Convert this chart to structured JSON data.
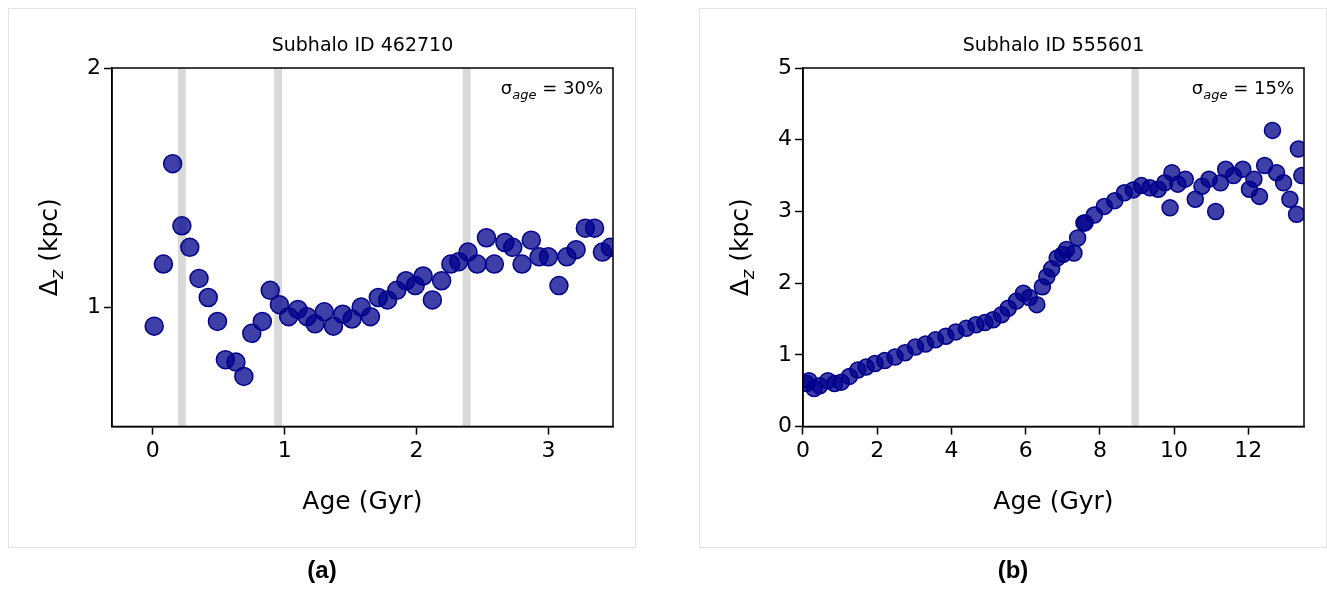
{
  "chart_data": [
    {
      "type": "scatter",
      "title": "Subhalo ID 462710",
      "xlabel": "Age (Gyr)",
      "ylabel": "Δ$_{z}$ (kpc)",
      "color": "#00008b",
      "marker": "circle",
      "grid": false,
      "legend": false,
      "x": [
        0.01,
        0.08,
        0.15,
        0.22,
        0.28,
        0.35,
        0.42,
        0.49,
        0.55,
        0.63,
        0.69,
        0.75,
        0.83,
        0.89,
        0.96,
        1.03,
        1.1,
        1.17,
        1.23,
        1.3,
        1.37,
        1.44,
        1.51,
        1.58,
        1.65,
        1.71,
        1.78,
        1.85,
        1.92,
        1.99,
        2.05,
        2.12,
        2.19,
        2.26,
        2.32,
        2.39,
        2.46,
        2.53,
        2.59,
        2.67,
        2.73,
        2.8,
        2.87,
        2.93,
        3.0,
        3.08,
        3.14,
        3.21,
        3.28,
        3.35,
        3.41,
        3.47
      ],
      "values": [
        0.92,
        1.18,
        1.6,
        1.34,
        1.25,
        1.12,
        1.04,
        0.94,
        0.78,
        0.77,
        0.71,
        0.89,
        0.94,
        1.07,
        1.01,
        0.96,
        0.99,
        0.96,
        0.93,
        0.98,
        0.92,
        0.97,
        0.95,
        1.0,
        0.96,
        1.04,
        1.03,
        1.07,
        1.11,
        1.09,
        1.13,
        1.03,
        1.11,
        1.18,
        1.19,
        1.23,
        1.18,
        1.29,
        1.18,
        1.27,
        1.25,
        1.18,
        1.28,
        1.21,
        1.21,
        1.09,
        1.21,
        1.24,
        1.33,
        1.33,
        1.23,
        1.25
      ],
      "xlim": [
        -0.31,
        3.49
      ],
      "ylim": [
        0.5,
        2
      ],
      "xticks": [
        0,
        1,
        2,
        3
      ],
      "yticks": [
        1,
        2
      ],
      "bands": [
        {
          "axis": "x",
          "from": 0.19,
          "to": 0.25,
          "color": "#d9d9d9"
        },
        {
          "axis": "x",
          "from": 0.92,
          "to": 0.98,
          "color": "#d9d9d9"
        },
        {
          "axis": "x",
          "from": 2.35,
          "to": 2.41,
          "color": "#d9d9d9"
        }
      ],
      "annotations": [
        "σ$_{age}$ = 30%",
        "(a)"
      ]
    },
    {
      "type": "scatter",
      "title": "Subhalo ID 555601",
      "xlabel": "Age (Gyr)",
      "ylabel": "Δ$_{z}$ (kpc)",
      "color": "#00008b",
      "marker": "circle",
      "grid": false,
      "legend": false,
      "x": [
        0.1,
        0.16,
        0.3,
        0.45,
        0.67,
        0.85,
        1.03,
        1.25,
        1.48,
        1.7,
        1.94,
        2.2,
        2.48,
        2.75,
        3.03,
        3.3,
        3.57,
        3.85,
        4.12,
        4.4,
        4.66,
        4.9,
        5.12,
        5.35,
        5.53,
        5.75,
        5.94,
        6.1,
        6.3,
        6.45,
        6.57,
        6.7,
        6.85,
        7.0,
        7.1,
        7.3,
        7.4,
        7.57,
        7.6,
        7.85,
        8.12,
        8.4,
        8.66,
        8.9,
        9.12,
        9.35,
        9.57,
        9.75,
        9.89,
        9.94,
        10.1,
        10.3,
        10.57,
        10.75,
        10.94,
        11.12,
        11.25,
        11.39,
        11.6,
        11.85,
        12.03,
        12.15,
        12.3,
        12.44,
        12.65,
        12.76,
        12.95,
        13.12,
        13.3,
        13.35,
        13.44
      ],
      "values": [
        0.6,
        0.64,
        0.53,
        0.57,
        0.64,
        0.6,
        0.62,
        0.7,
        0.79,
        0.83,
        0.88,
        0.92,
        0.97,
        1.03,
        1.11,
        1.15,
        1.21,
        1.26,
        1.32,
        1.37,
        1.42,
        1.45,
        1.49,
        1.56,
        1.65,
        1.75,
        1.86,
        1.8,
        1.7,
        1.95,
        2.09,
        2.2,
        2.35,
        2.4,
        2.47,
        2.42,
        2.63,
        2.84,
        2.84,
        2.95,
        3.07,
        3.15,
        3.26,
        3.3,
        3.36,
        3.33,
        3.31,
        3.4,
        3.05,
        3.54,
        3.38,
        3.45,
        3.17,
        3.35,
        3.45,
        3.0,
        3.4,
        3.59,
        3.5,
        3.59,
        3.31,
        3.45,
        3.21,
        3.64,
        4.13,
        3.54,
        3.4,
        3.17,
        2.96,
        3.87,
        3.5
      ],
      "xlim": [
        0,
        13.5
      ],
      "ylim": [
        0,
        5
      ],
      "xticks": [
        0,
        2,
        4,
        6,
        8,
        10,
        12
      ],
      "yticks": [
        0,
        1,
        2,
        3,
        4,
        5
      ],
      "bands": [
        {
          "axis": "x",
          "from": 8.85,
          "to": 9.05,
          "color": "#d9d9d9"
        }
      ],
      "annotations": [
        "σ$_{age}$ = 15%",
        "(b)"
      ]
    }
  ]
}
